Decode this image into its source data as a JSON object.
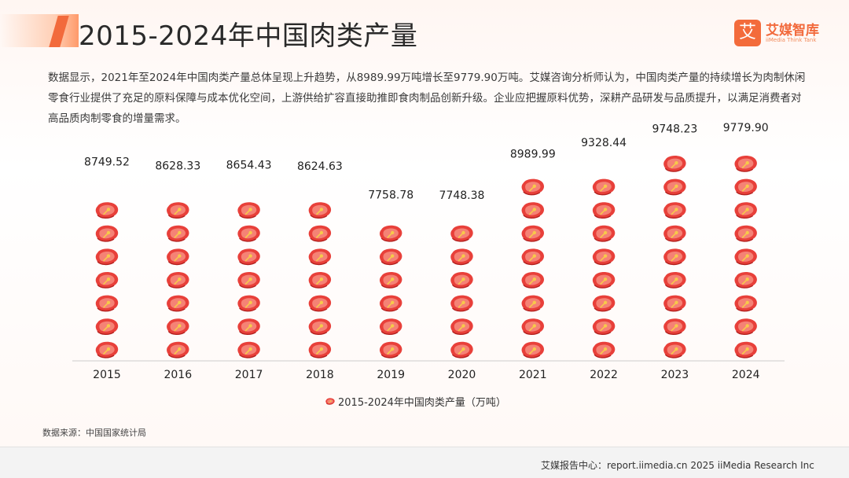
{
  "header": {
    "title": "2015-2024年中国肉类产量",
    "logo_mark": "艾",
    "logo_name": "艾媒智库",
    "logo_sub": "iiMedia Think Tank"
  },
  "description": "数据显示，2021年至2024年中国肉类产量总体呈现上升趋势，从8989.99万吨增长至9779.90万吨。艾媒咨询分析师认为，中国肉类产量的持续增长为肉制休闲零食行业提供了充足的原料保障与成本优化空间，上游供给扩容直接助推即食肉制品创新升级。企业应把握原料优势，深耕产品研发与品质提升，以满足消费者对高品质肉制零食的增量需求。",
  "chart_data": {
    "type": "bar",
    "style": "pictograph",
    "categories": [
      "2015",
      "2016",
      "2017",
      "2018",
      "2019",
      "2020",
      "2021",
      "2022",
      "2023",
      "2024"
    ],
    "series": [
      {
        "name": "2015-2024年中国肉类产量（万吨）",
        "values": [
          8749.52,
          8628.33,
          8654.43,
          8624.63,
          7758.78,
          7748.38,
          8989.99,
          9328.44,
          9748.23,
          9779.9
        ]
      }
    ],
    "data_labels": [
      "8749.52",
      "8628.33",
      "8654.43",
      "8624.63",
      "7758.78",
      "7748.38",
      "8989.99",
      "9328.44",
      "9748.23",
      "9779.90"
    ],
    "legend_position": "bottom",
    "grid": false,
    "colors": {
      "meat": "#e8403a",
      "marbling": "#ffb8a6",
      "bone": "#f7c94a",
      "axis": "#cccccc"
    }
  },
  "source": "数据来源：中国国家统计局",
  "footer": "艾媒报告中心：report.iimedia.cn   2025 iiMedia Research Inc"
}
